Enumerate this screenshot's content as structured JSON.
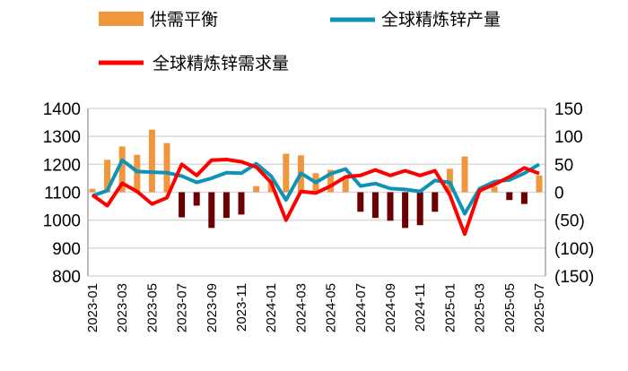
{
  "chart_data": {
    "type": "bar+line",
    "categories": [
      "2023-01",
      "2023-02",
      "2023-03",
      "2023-04",
      "2023-05",
      "2023-06",
      "2023-07",
      "2023-08",
      "2023-09",
      "2023-10",
      "2023-11",
      "2023-12",
      "2024-01",
      "2024-02",
      "2024-03",
      "2024-04",
      "2024-05",
      "2024-06",
      "2024-07",
      "2024-08",
      "2024-09",
      "2024-10",
      "2024-11",
      "2024-12",
      "2025-01",
      "2025-02",
      "2025-03",
      "2025-04",
      "2025-05",
      "2025-06",
      "2025-07"
    ],
    "x_tick_labels": [
      "2023-01",
      "2023-03",
      "2023-05",
      "2023-07",
      "2023-09",
      "2023-11",
      "2024-01",
      "2024-03",
      "2024-05",
      "2024-07",
      "2024-09",
      "2024-11",
      "2025-01",
      "2025-03",
      "2025-05",
      "2025-07"
    ],
    "left_axis": {
      "ylim": [
        800,
        1400
      ],
      "ticks": [
        "800",
        "900",
        "1000",
        "1100",
        "1200",
        "1300",
        "1400"
      ]
    },
    "right_axis": {
      "ylim": [
        -150,
        150
      ],
      "ticks": [
        "(150)",
        "(100)",
        "(50)",
        "0",
        "50",
        "100",
        "150"
      ]
    },
    "grid": true,
    "legend_placement": "top",
    "series": [
      {
        "name": "供需平衡",
        "type": "bar",
        "axis": "right",
        "color_positive": "#F0963C",
        "color_negative": "#6B0000",
        "values": [
          6,
          58,
          82,
          67,
          112,
          88,
          -45,
          -24,
          -64,
          -46,
          -40,
          11,
          18,
          69,
          66,
          34,
          40,
          26,
          -35,
          -46,
          -51,
          -64,
          -59,
          -35,
          42,
          64,
          3,
          10,
          -14,
          -21,
          30
        ]
      },
      {
        "name": "全球精炼锌产量",
        "type": "line",
        "axis": "left",
        "color": "#0E93B5",
        "values": [
          1087,
          1106,
          1215,
          1174,
          1172,
          1170,
          1158,
          1135,
          1150,
          1170,
          1168,
          1202,
          1158,
          1072,
          1168,
          1135,
          1166,
          1183,
          1122,
          1131,
          1113,
          1110,
          1103,
          1142,
          1135,
          1023,
          1113,
          1138,
          1144,
          1168,
          1200
        ]
      },
      {
        "name": "全球精炼锌需求量",
        "type": "line",
        "axis": "left",
        "color": "#FF0000",
        "values": [
          1090,
          1052,
          1132,
          1103,
          1058,
          1080,
          1200,
          1160,
          1215,
          1217,
          1209,
          1190,
          1135,
          1000,
          1103,
          1097,
          1122,
          1155,
          1160,
          1180,
          1160,
          1177,
          1160,
          1177,
          1090,
          950,
          1106,
          1128,
          1155,
          1187,
          1167
        ]
      }
    ]
  },
  "colors": {
    "negative_tick": "#FF0000",
    "grid": "#D9D9D9"
  }
}
